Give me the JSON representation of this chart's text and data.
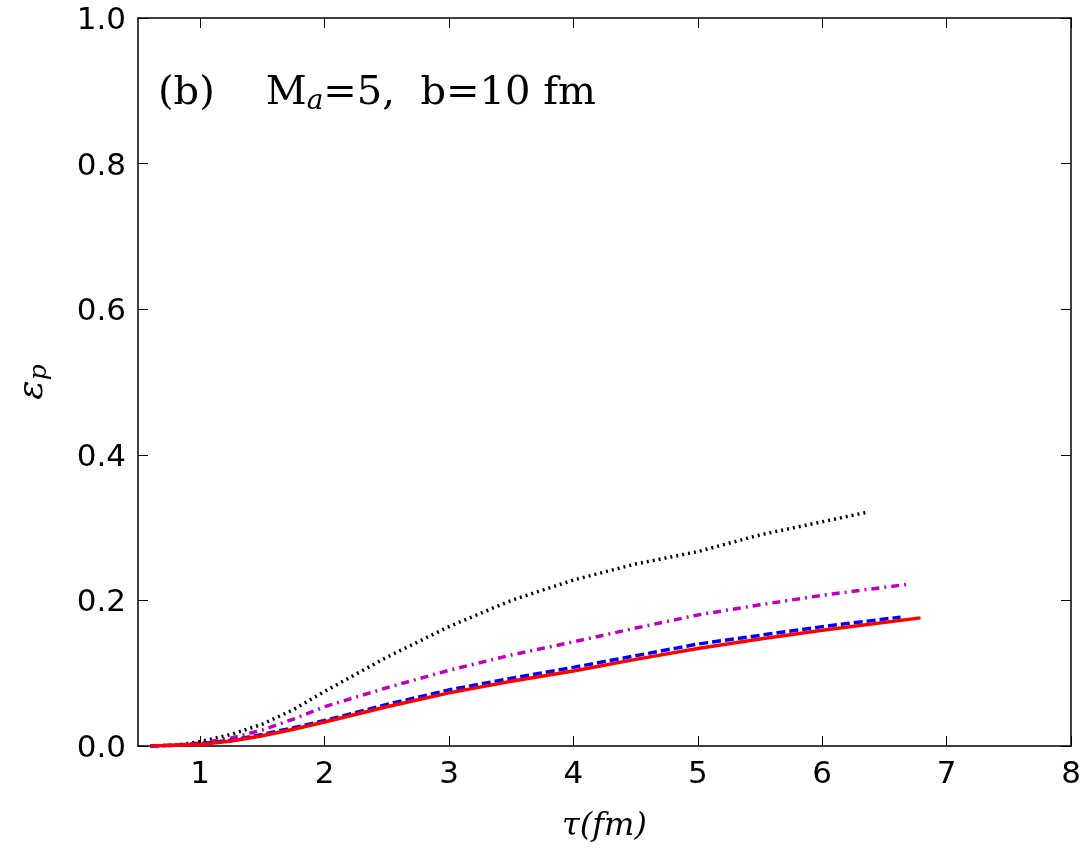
{
  "chart_data": {
    "type": "line",
    "xlabel": "τ(fm)",
    "ylabel": "ε$_{p}$",
    "annotations": [
      "(b)    M$_{a}$=5,  b=10 fm"
    ],
    "xlim": [
      0.5,
      8
    ],
    "xticks": [
      1,
      2,
      3,
      4,
      5,
      6,
      7,
      8
    ],
    "ylim": [
      0,
      1
    ],
    "yticks": [
      {
        "value": 0,
        "label": "0.0"
      },
      0.2,
      0.4,
      0.6,
      0.8,
      {
        "value": 1,
        "label": "1.0"
      }
    ],
    "grid": false,
    "marker": "none",
    "series": [
      {
        "color": "#000000",
        "line_style": "dotted",
        "x": [
          0.6,
          0.8,
          1,
          1.25,
          1.5,
          1.75,
          2,
          2.5,
          3,
          3.5,
          4,
          4.5,
          5,
          5.5,
          6,
          6.36
        ],
        "values": [
          0,
          0.001,
          0.006,
          0.016,
          0.03,
          0.05,
          0.075,
          0.122,
          0.164,
          0.2,
          0.228,
          0.25,
          0.267,
          0.29,
          0.308,
          0.321
        ]
      },
      {
        "color": "#c000c0",
        "line_style": "dashdot",
        "x": [
          0.6,
          0.8,
          1,
          1.25,
          1.5,
          1.75,
          2,
          2.5,
          3,
          3.5,
          4,
          4.5,
          5,
          5.5,
          6,
          6.68
        ],
        "values": [
          0,
          0.001,
          0.004,
          0.011,
          0.022,
          0.037,
          0.054,
          0.08,
          0.104,
          0.125,
          0.143,
          0.162,
          0.18,
          0.194,
          0.207,
          0.222
        ]
      },
      {
        "color": "#0000ff",
        "line_style": "dashed",
        "x": [
          0.6,
          0.8,
          1,
          1.25,
          1.5,
          1.75,
          2,
          2.5,
          3,
          3.5,
          4,
          4.5,
          5,
          5.5,
          6,
          6.63
        ],
        "values": [
          0,
          0.001,
          0.003,
          0.008,
          0.016,
          0.025,
          0.035,
          0.057,
          0.077,
          0.093,
          0.108,
          0.124,
          0.14,
          0.152,
          0.164,
          0.177
        ]
      },
      {
        "color": "#ff0000",
        "line_style": "solid",
        "x": [
          0.6,
          0.8,
          1,
          1.25,
          1.5,
          1.75,
          2,
          2.5,
          3,
          3.5,
          4,
          4.5,
          5,
          5.5,
          6,
          6.79
        ],
        "values": [
          0,
          0.001,
          0.002,
          0.007,
          0.014,
          0.023,
          0.033,
          0.054,
          0.073,
          0.089,
          0.103,
          0.119,
          0.134,
          0.147,
          0.159,
          0.176
        ]
      }
    ]
  }
}
